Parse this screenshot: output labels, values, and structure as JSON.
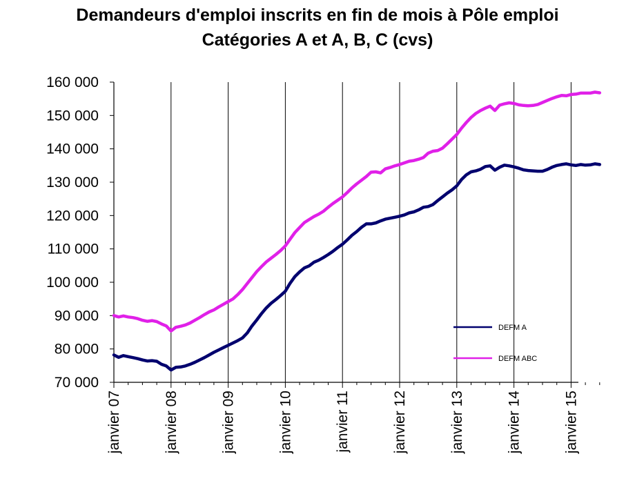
{
  "chart_data": {
    "type": "line",
    "title": "Demandeurs d'emploi inscrits en fin de mois à Pôle emploi",
    "subtitle": "Catégories A et A, B, C (cvs)",
    "xlabel": "",
    "ylabel": "",
    "ylim": [
      70000,
      160000
    ],
    "y_ticks": [
      70000,
      80000,
      90000,
      100000,
      110000,
      120000,
      130000,
      140000,
      150000,
      160000
    ],
    "y_tick_labels": [
      "70 000",
      "80 000",
      "90 000",
      "100 000",
      "110 000",
      "120 000",
      "130 000",
      "140 000",
      "150 000",
      "160 000"
    ],
    "x_tick_labels": [
      "janvier 07",
      "janvier 08",
      "janvier 09",
      "janvier 10",
      "janvier 11",
      "janvier 12",
      "janvier 13",
      "janvier 14",
      "janvier 15"
    ],
    "x_start": "2007-01",
    "x_end": "2015-02",
    "grid": "vertical at january ticks",
    "legend_position": "lower-right",
    "series": [
      {
        "name": "DEFM A",
        "color": "#00006e",
        "values": [
          78200,
          77500,
          78000,
          77700,
          77400,
          77100,
          76700,
          76400,
          76500,
          76300,
          75400,
          74900,
          73700,
          74500,
          74600,
          74900,
          75400,
          76000,
          76700,
          77400,
          78200,
          79000,
          79700,
          80400,
          81100,
          81800,
          82500,
          83300,
          84800,
          86900,
          88700,
          90600,
          92300,
          93700,
          94800,
          96000,
          97300,
          99700,
          101700,
          103100,
          104300,
          104900,
          106000,
          106600,
          107400,
          108300,
          109300,
          110400,
          111400,
          112700,
          114100,
          115200,
          116500,
          117500,
          117500,
          117800,
          118400,
          118900,
          119200,
          119500,
          119800,
          120200,
          120800,
          121100,
          121700,
          122500,
          122700,
          123300,
          124500,
          125600,
          126700,
          127700,
          128900,
          130800,
          132200,
          133100,
          133400,
          133900,
          134700,
          134900,
          133600,
          134500,
          135100,
          134900,
          134600,
          134200,
          133700,
          133500,
          133400,
          133300,
          133300,
          133800,
          134500,
          135000,
          135300,
          135500,
          135200,
          135000,
          135300,
          135100,
          135200,
          135500,
          135300
        ]
      },
      {
        "name": "DEFM ABC",
        "color": "#e020e8",
        "values": [
          90000,
          89600,
          89900,
          89600,
          89400,
          89100,
          88600,
          88300,
          88500,
          88200,
          87500,
          86900,
          85400,
          86500,
          86800,
          87200,
          87800,
          88600,
          89400,
          90300,
          91100,
          91700,
          92600,
          93400,
          94200,
          95000,
          96300,
          97800,
          99600,
          101400,
          103200,
          104700,
          106100,
          107200,
          108300,
          109500,
          110900,
          112900,
          114900,
          116400,
          117900,
          118800,
          119700,
          120400,
          121300,
          122500,
          123600,
          124600,
          125600,
          126900,
          128300,
          129500,
          130600,
          131700,
          133000,
          133100,
          132800,
          134000,
          134400,
          134900,
          135300,
          135800,
          136300,
          136500,
          136900,
          137400,
          138700,
          139300,
          139500,
          140200,
          141500,
          142900,
          144300,
          146200,
          147900,
          149400,
          150600,
          151500,
          152200,
          152800,
          151500,
          153100,
          153500,
          153800,
          153600,
          153200,
          153000,
          152900,
          153000,
          153300,
          153900,
          154500,
          155100,
          155600,
          156000,
          155900,
          156300,
          156400,
          156700,
          156700,
          156700,
          157000,
          156800
        ]
      }
    ]
  }
}
